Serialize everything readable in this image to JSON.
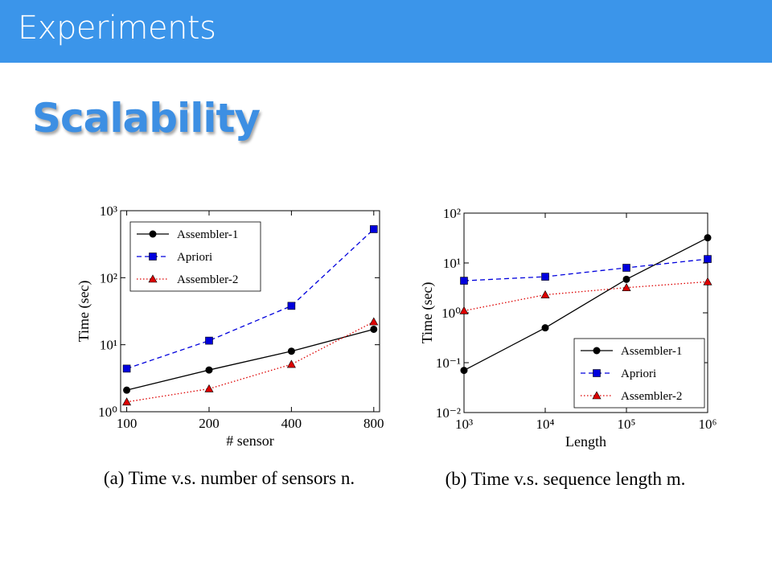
{
  "header": {
    "title": "Experiments"
  },
  "heading": "Scalability",
  "chart_data": [
    {
      "type": "line",
      "caption": "(a) Time v.s. number of sensors n.",
      "xlabel": "# sensor",
      "ylabel": "Time (sec)",
      "x": [
        100,
        200,
        400,
        800
      ],
      "xscale": "log",
      "yscale": "log",
      "xlim": [
        95,
        840
      ],
      "xticks": [
        100,
        200,
        400,
        800
      ],
      "ylim": [
        1,
        1000
      ],
      "yticks": [
        {
          "value": 1,
          "label": "10⁰"
        },
        {
          "value": 10,
          "label": "10¹"
        },
        {
          "value": 100,
          "label": "10²"
        },
        {
          "value": 1000,
          "label": "10³"
        }
      ],
      "legend": "upper left",
      "series": [
        {
          "name": "Assembler-1",
          "color": "#000000",
          "marker": "circle",
          "linestyle": "solid",
          "values": [
            2.1,
            4.2,
            8,
            17
          ]
        },
        {
          "name": "Apriori",
          "color": "#0000dd",
          "marker": "square",
          "linestyle": "dashed",
          "values": [
            4.4,
            11.5,
            38,
            530
          ]
        },
        {
          "name": "Assembler-2",
          "color": "#dd0000",
          "marker": "triangle",
          "linestyle": "dotted",
          "values": [
            1.4,
            2.2,
            5.1,
            22
          ]
        }
      ]
    },
    {
      "type": "line",
      "caption": "(b) Time v.s. sequence length m.",
      "xlabel": "Length",
      "ylabel": "Time (sec)",
      "x": [
        1000,
        10000,
        100000,
        1000000
      ],
      "xscale": "log",
      "yscale": "log",
      "xlim": [
        1000,
        1000000
      ],
      "xticks": [
        {
          "value": 1000,
          "label": "10³"
        },
        {
          "value": 10000,
          "label": "10⁴"
        },
        {
          "value": 100000,
          "label": "10⁵"
        },
        {
          "value": 1000000,
          "label": "10⁶"
        }
      ],
      "ylim": [
        0.01,
        100
      ],
      "yticks": [
        {
          "value": 0.01,
          "label": "10⁻²"
        },
        {
          "value": 0.1,
          "label": "10⁻¹"
        },
        {
          "value": 1,
          "label": "10⁰"
        },
        {
          "value": 10,
          "label": "10¹"
        },
        {
          "value": 100,
          "label": "10²"
        }
      ],
      "legend": "lower right",
      "series": [
        {
          "name": "Assembler-1",
          "color": "#000000",
          "marker": "circle",
          "linestyle": "solid",
          "values": [
            0.07,
            0.5,
            4.7,
            32
          ]
        },
        {
          "name": "Apriori",
          "color": "#0000dd",
          "marker": "square",
          "linestyle": "dashed",
          "values": [
            4.4,
            5.3,
            8,
            12
          ]
        },
        {
          "name": "Assembler-2",
          "color": "#dd0000",
          "marker": "triangle",
          "linestyle": "dotted",
          "values": [
            1.1,
            2.3,
            3.2,
            4.2
          ]
        }
      ]
    }
  ]
}
